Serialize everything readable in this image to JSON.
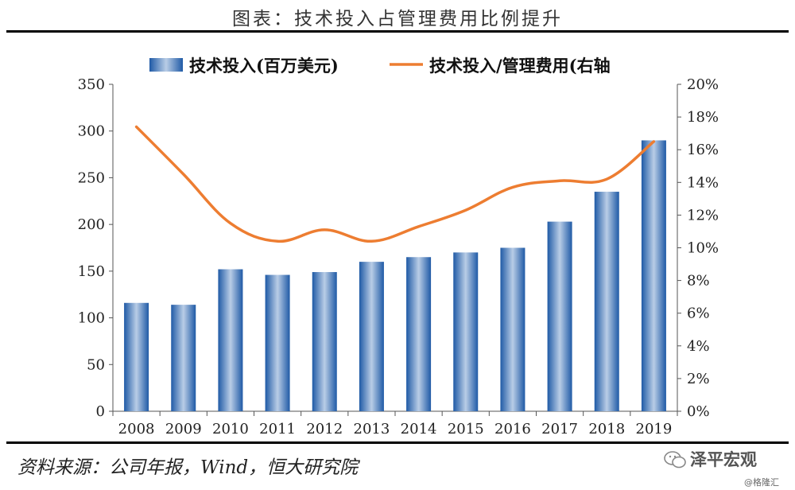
{
  "title": "图表：技术投入占管理费用比例提升",
  "source": "资料来源：公司年报，Wind，恒大研究院",
  "watermark": {
    "brand": "泽平宏观",
    "sub": "@格隆汇"
  },
  "chart_data": {
    "type": "bar",
    "categories": [
      "2008",
      "2009",
      "2010",
      "2011",
      "2012",
      "2013",
      "2014",
      "2015",
      "2016",
      "2017",
      "2018",
      "2019"
    ],
    "series": [
      {
        "name": "技术投入(百万美元)",
        "type": "bar",
        "axis": "left",
        "color": "#2e6db4",
        "values": [
          116,
          114,
          152,
          146,
          149,
          160,
          165,
          170,
          175,
          203,
          235,
          290
        ]
      },
      {
        "name": "技术投入/管理费用(右轴",
        "type": "line",
        "axis": "right",
        "color": "#ed7d31",
        "values": [
          17.4,
          14.5,
          11.5,
          10.4,
          11.1,
          10.4,
          11.3,
          12.3,
          13.7,
          14.1,
          14.2,
          16.5
        ]
      }
    ],
    "y_left": {
      "min": 0,
      "max": 350,
      "step": 50,
      "ticks": [
        "0",
        "50",
        "100",
        "150",
        "200",
        "250",
        "300",
        "350"
      ]
    },
    "y_right": {
      "min": 0,
      "max": 20,
      "step": 2,
      "ticks": [
        "0%",
        "2%",
        "4%",
        "6%",
        "8%",
        "10%",
        "12%",
        "14%",
        "16%",
        "18%",
        "20%"
      ]
    },
    "legend_position": "top"
  }
}
